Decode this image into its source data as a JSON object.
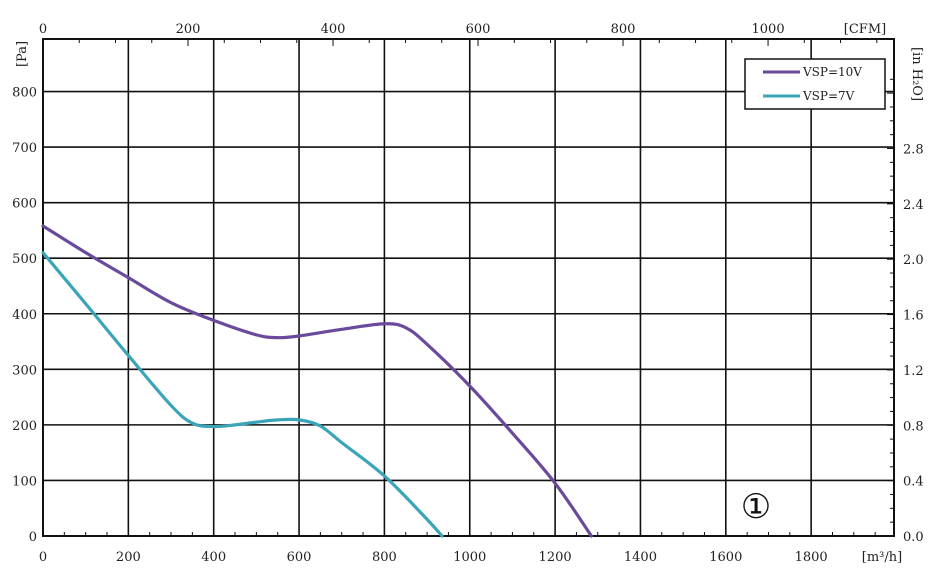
{
  "chart_data": {
    "type": "line",
    "x_unit": "[m³/h]",
    "x_top_unit": "[CFM]",
    "y_unit": "[Pa]",
    "y_right_unit": "[in H₂O]",
    "xlim": [
      0,
      2000
    ],
    "ylim": [
      0,
      850
    ],
    "x_ticks": [
      0,
      200,
      400,
      600,
      800,
      1000,
      1200,
      1400,
      1600,
      1800
    ],
    "x_tick_labels": [
      "0",
      "200",
      "400",
      "600",
      "800",
      "1000",
      "1200",
      "1400",
      "1600",
      "1800"
    ],
    "y_ticks": [
      0,
      100,
      200,
      300,
      400,
      500,
      600,
      700,
      800
    ],
    "y_tick_labels": [
      "0",
      "100",
      "200",
      "300",
      "400",
      "500",
      "600",
      "700",
      "800"
    ],
    "top_ticks_cfm": [
      0,
      200,
      400,
      600,
      800,
      1000
    ],
    "top_tick_labels": [
      "0",
      "200",
      "400",
      "600",
      "800",
      "1000"
    ],
    "right_ticks_inh2o": [
      0,
      0.4,
      0.8,
      1.2,
      1.6,
      2.0,
      2.4,
      2.8
    ],
    "right_tick_labels": [
      "0.0",
      "0.4",
      "0.8",
      "1.2",
      "1.6",
      "2.0",
      "2.4",
      "2.8"
    ],
    "grid": true,
    "legend_position": "top-right",
    "annotation": "①",
    "series": [
      {
        "name": "VSP=10V",
        "color": "#6a4a9c",
        "x": [
          0,
          100,
          200,
          300,
          400,
          500,
          550,
          600,
          700,
          800,
          850,
          900,
          1000,
          1100,
          1200,
          1285
        ],
        "y": [
          558,
          510,
          465,
          420,
          388,
          362,
          357,
          360,
          372,
          382,
          375,
          345,
          270,
          185,
          95,
          0
        ]
      },
      {
        "name": "VSP=7V",
        "color": "#3aa4b8",
        "x": [
          0,
          100,
          200,
          300,
          350,
          400,
          450,
          500,
          550,
          600,
          650,
          700,
          800,
          900,
          935
        ],
        "y": [
          510,
          418,
          325,
          235,
          203,
          197,
          200,
          205,
          209,
          209,
          198,
          168,
          108,
          30,
          0
        ]
      }
    ]
  }
}
